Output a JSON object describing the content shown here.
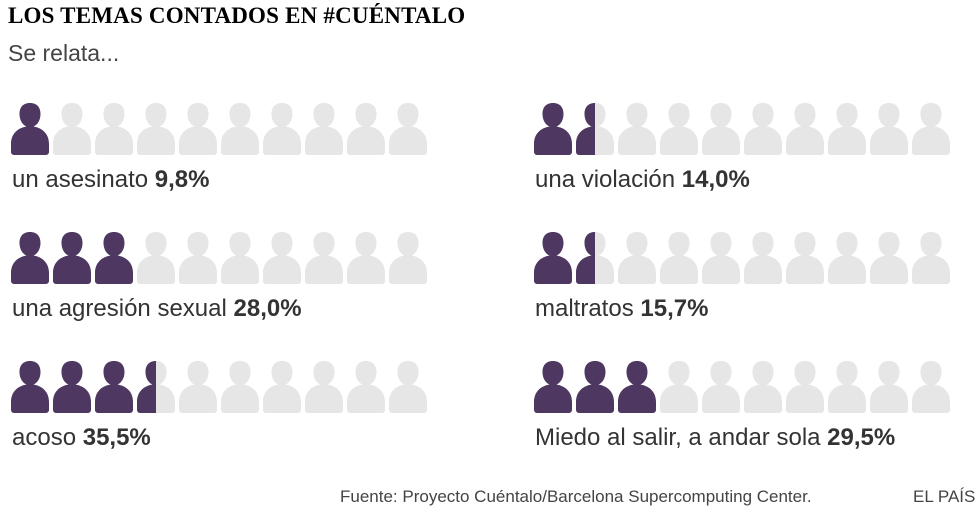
{
  "title": "LOS TEMAS CONTADOS EN #CUÉNTALO",
  "subtitle": "Se relata...",
  "colors": {
    "filled": "#4e3760",
    "empty": "#e6e6e6"
  },
  "icon": "person-icon",
  "icons_per_row": 10,
  "chart_data": {
    "type": "pictogram",
    "title": "LOS TEMAS CONTADOS EN #CUÉNTALO",
    "subtitle": "Se relata...",
    "icon_fill_values": [
      1,
      1.5,
      3,
      1.5,
      3.5,
      3
    ],
    "items": [
      {
        "label": "un asesinato",
        "value": "9,8%",
        "percent": 9.8
      },
      {
        "label": "una violación",
        "value": "14,0%",
        "percent": 14.0
      },
      {
        "label": "una agresión sexual",
        "value": "28,0%",
        "percent": 28.0
      },
      {
        "label": "maltratos",
        "value": "15,7%",
        "percent": 15.7
      },
      {
        "label": "acoso",
        "value": "35,5%",
        "percent": 35.5
      },
      {
        "label": "Miedo al salir, a andar sola",
        "value": "29,5%",
        "percent": 29.5
      }
    ]
  },
  "footer": {
    "source": "Fuente: Proyecto Cuéntalo/Barcelona Supercomputing Center.",
    "brand": "EL PAÍS"
  }
}
